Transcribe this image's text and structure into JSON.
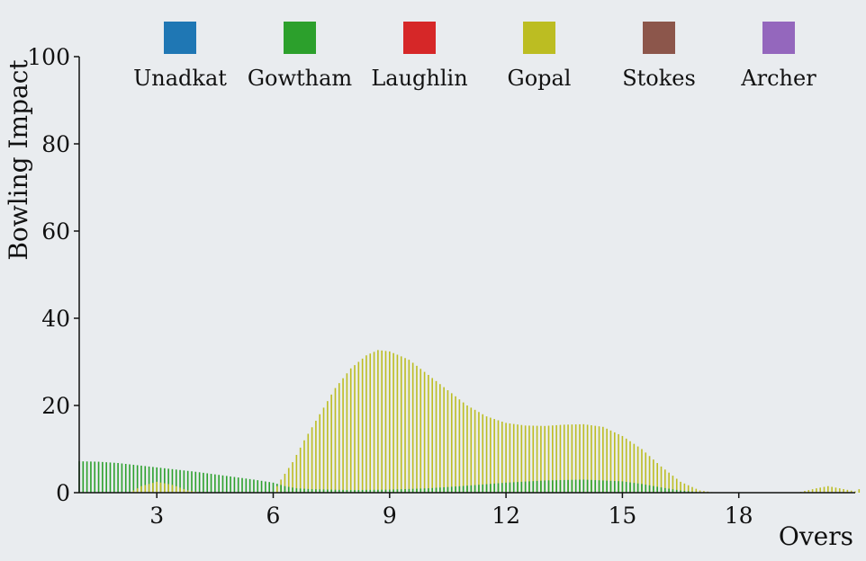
{
  "chart_data": {
    "type": "bar",
    "xlabel": "Overs",
    "ylabel": "Bowling Impact",
    "xlim": [
      1,
      21
    ],
    "ylim": [
      0,
      100
    ],
    "x_ticks": [
      3,
      6,
      9,
      12,
      15,
      18
    ],
    "y_ticks": [
      0,
      20,
      40,
      60,
      80,
      100
    ],
    "legend_position": "top",
    "grid": false,
    "series": [
      {
        "name": "Unadkat",
        "color": "#1f77b4",
        "points": []
      },
      {
        "name": "Gowtham",
        "color": "#2ca02c",
        "points": [
          [
            1,
            7.2
          ],
          [
            1.5,
            7.1
          ],
          [
            2,
            6.8
          ],
          [
            2.5,
            6.3
          ],
          [
            3,
            5.8
          ],
          [
            3.5,
            5.3
          ],
          [
            4,
            4.8
          ],
          [
            4.5,
            4.2
          ],
          [
            5,
            3.6
          ],
          [
            5.5,
            3.0
          ],
          [
            6,
            2.3
          ],
          [
            6.3,
            1.5
          ],
          [
            6.6,
            1.0
          ],
          [
            7,
            0.8
          ],
          [
            8,
            0.6
          ],
          [
            9,
            0.7
          ],
          [
            10,
            1.0
          ],
          [
            11,
            1.6
          ],
          [
            12,
            2.3
          ],
          [
            13,
            2.8
          ],
          [
            14,
            3.0
          ],
          [
            15,
            2.6
          ],
          [
            15.5,
            2.0
          ],
          [
            16,
            1.2
          ],
          [
            16.5,
            0.5
          ],
          [
            17,
            0.1
          ],
          [
            17.5,
            0
          ]
        ]
      },
      {
        "name": "Laughlin",
        "color": "#d62728",
        "points": []
      },
      {
        "name": "Gopal",
        "color": "#bcbd22",
        "points": [
          [
            2.3,
            0
          ],
          [
            2.6,
            1.5
          ],
          [
            3,
            2.5
          ],
          [
            3.4,
            1.8
          ],
          [
            3.8,
            0.5
          ],
          [
            4.2,
            0
          ],
          [
            6,
            0
          ],
          [
            6.2,
            3
          ],
          [
            6.5,
            7
          ],
          [
            6.8,
            12
          ],
          [
            7.2,
            18
          ],
          [
            7.6,
            24
          ],
          [
            8,
            28.5
          ],
          [
            8.4,
            31.5
          ],
          [
            8.7,
            32.7
          ],
          [
            9,
            32.4
          ],
          [
            9.5,
            30.5
          ],
          [
            10,
            27
          ],
          [
            10.5,
            23.5
          ],
          [
            11,
            20
          ],
          [
            11.5,
            17.5
          ],
          [
            12,
            16
          ],
          [
            12.5,
            15.4
          ],
          [
            13,
            15.3
          ],
          [
            13.5,
            15.6
          ],
          [
            14,
            15.7
          ],
          [
            14.5,
            15.1
          ],
          [
            15,
            13
          ],
          [
            15.5,
            10
          ],
          [
            16,
            6
          ],
          [
            16.5,
            2.5
          ],
          [
            17,
            0.5
          ],
          [
            17.4,
            0
          ],
          [
            19.5,
            0
          ],
          [
            20,
            1
          ],
          [
            20.3,
            1.5
          ],
          [
            20.6,
            1.0
          ],
          [
            21,
            0.3
          ],
          [
            21.3,
            1.8
          ]
        ]
      },
      {
        "name": "Stokes",
        "color": "#8c564b",
        "points": []
      },
      {
        "name": "Archer",
        "color": "#9467bd",
        "points": []
      }
    ]
  }
}
